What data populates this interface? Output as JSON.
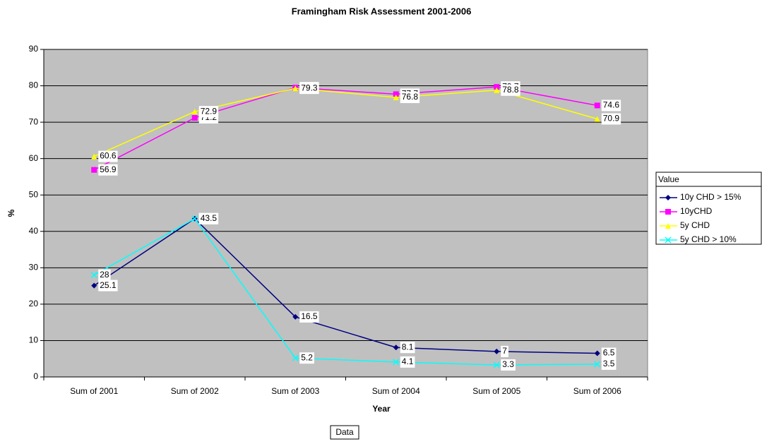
{
  "chart_data": {
    "type": "line",
    "title": "Framingham Risk Assessment 2001-2006",
    "x_label": "Year",
    "y_label": "%",
    "legend_title": "Value",
    "field_button": "Data",
    "categories": [
      "Sum of 2001",
      "Sum of 2002",
      "Sum of 2003",
      "Sum of 2004",
      "Sum of 2005",
      "Sum of 2006"
    ],
    "series": [
      {
        "name": "10y CHD > 15%",
        "color": "#000080",
        "marker": "diamond",
        "values": [
          25.1,
          43.5,
          16.5,
          8.1,
          7,
          6.5
        ]
      },
      {
        "name": "10yCHD",
        "color": "#ff00ff",
        "marker": "square",
        "values": [
          56.9,
          71.2,
          79.5,
          77.7,
          79.7,
          74.6
        ]
      },
      {
        "name": "5y CHD",
        "color": "#ffff00",
        "marker": "triangle",
        "values": [
          60.6,
          72.9,
          79.3,
          76.8,
          78.8,
          70.9
        ]
      },
      {
        "name": "5y CHD > 10%",
        "color": "#00ffff",
        "marker": "x",
        "values": [
          28,
          43.5,
          5.2,
          4.1,
          3.3,
          3.5
        ]
      }
    ],
    "ylim": [
      0,
      90
    ],
    "yticks": [
      0,
      10,
      20,
      30,
      40,
      50,
      60,
      70,
      80,
      90
    ],
    "grid": true,
    "legend": "right"
  }
}
